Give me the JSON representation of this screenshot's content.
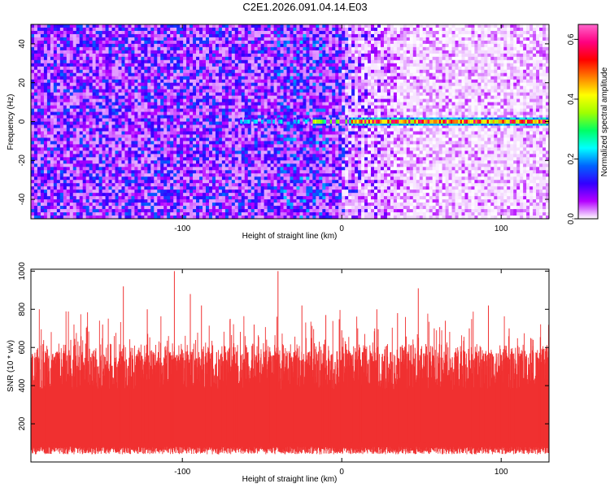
{
  "title": "C2E1.2026.091.04.14.E03",
  "chart_data": [
    {
      "type": "heatmap",
      "title": "C2E1.2026.091.04.14.E03",
      "xlabel": "Height of straight line (km)",
      "ylabel": "Frequency (Hz)",
      "xlim": [
        -195,
        130
      ],
      "ylim": [
        -50,
        50
      ],
      "xticks": [
        -100,
        0,
        100
      ],
      "xtick_labels": [
        "-100",
        "0",
        "100"
      ],
      "yticks": [
        -40,
        -20,
        0,
        20,
        40
      ],
      "ytick_labels": [
        "-40",
        "-20",
        "0",
        "20",
        "40"
      ],
      "colorbar": {
        "label": "Normalized spectral amplitude",
        "range": [
          0,
          0.65
        ],
        "ticks": [
          0,
          0.2,
          0.4,
          0.6
        ],
        "tick_labels": [
          "0.0",
          "0.2",
          "0.4",
          "0.6"
        ],
        "colormap": [
          "#ffffff",
          "#b400ff",
          "#3200ff",
          "#0064ff",
          "#00ffff",
          "#00ff64",
          "#a0ff00",
          "#ffff00",
          "#ff8000",
          "#ff0000",
          "#ff0080",
          "#ff66cc"
        ]
      },
      "features": {
        "signal_line_frequency_hz": 0,
        "signal_onset_km": -65,
        "strong_signal_from_km": 5,
        "noise_level_left": 0.1,
        "noise_level_right": 0.03,
        "peak_amplitude": 0.6
      },
      "grid": false
    },
    {
      "type": "line",
      "xlabel": "Height of straight line (km)",
      "ylabel": "SNR (10 * v/v)",
      "xlim": [
        -195,
        130
      ],
      "ylim": [
        0,
        1010
      ],
      "xticks": [
        -100,
        0,
        100
      ],
      "xtick_labels": [
        "-100",
        "0",
        "100"
      ],
      "yticks": [
        200,
        400,
        600,
        800,
        1000
      ],
      "ytick_labels": [
        "200",
        "400",
        "600",
        "800",
        "1000"
      ],
      "series": [
        {
          "name": "SNR",
          "color": "#f03030",
          "typical_range": [
            40,
            560
          ],
          "x_peaks": [
            -195,
            -170,
            -150,
            -137,
            -122,
            -105,
            -95,
            -88,
            -70,
            -55,
            -40,
            -25,
            -10,
            0,
            10,
            22,
            35,
            48,
            58,
            65,
            80,
            92,
            105,
            120,
            128
          ],
          "y_peaks": [
            700,
            640,
            720,
            920,
            800,
            1000,
            880,
            820,
            750,
            720,
            1000,
            820,
            770,
            690,
            700,
            800,
            780,
            910,
            700,
            740,
            700,
            820,
            700,
            640,
            580
          ]
        }
      ],
      "grid": false
    }
  ]
}
